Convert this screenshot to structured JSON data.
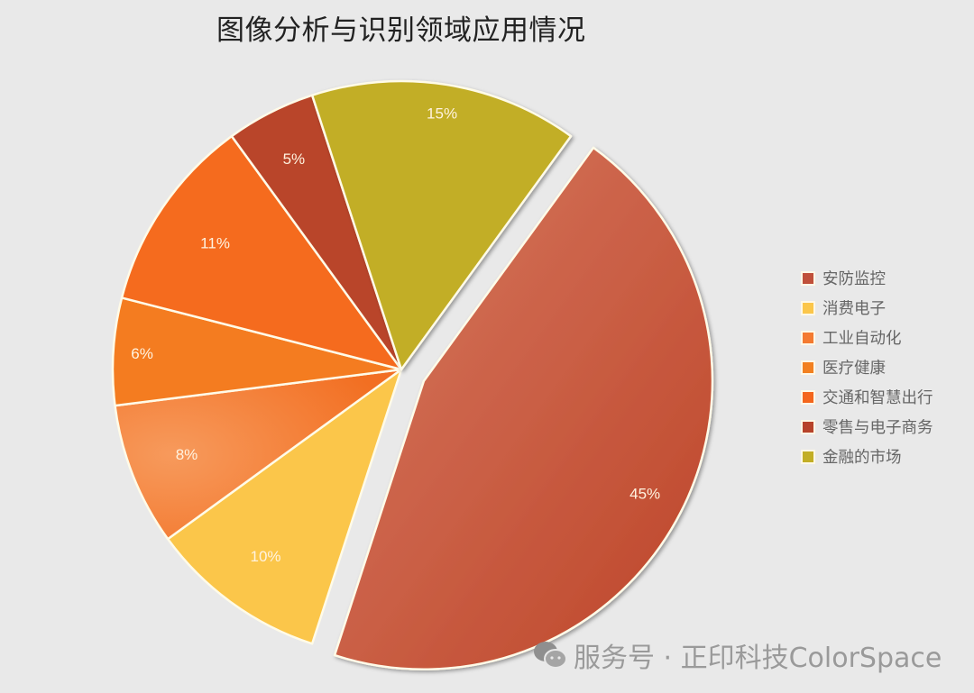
{
  "title": "图像分析与识别领域应用情况",
  "legend": [
    {
      "label": "安防监控",
      "color": "#c0503a"
    },
    {
      "label": "消费电子",
      "color": "#fbc64a"
    },
    {
      "label": "工业自动化",
      "color": "#f47a30"
    },
    {
      "label": "医疗健康",
      "color": "#f28020"
    },
    {
      "label": "交通和智慧出行",
      "color": "#f4661c"
    },
    {
      "label": "零售与电子商务",
      "color": "#b7432a"
    },
    {
      "label": "金融的市场",
      "color": "#c2ae25"
    }
  ],
  "watermark": "服务号 · 正印科技ColorSpace",
  "chart_data": {
    "type": "pie",
    "title": "图像分析与识别领域应用情况",
    "categories": [
      "安防监控",
      "消费电子",
      "工业自动化",
      "医疗健康",
      "交通和智慧出行",
      "零售与电子商务",
      "金融的市场"
    ],
    "values": [
      45,
      10,
      8,
      6,
      11,
      5,
      15
    ],
    "labels": [
      "45%",
      "10%",
      "8%",
      "6%",
      "11%",
      "5%",
      "15%"
    ],
    "colors": [
      "#c8573f",
      "#fbc64a",
      "#f57d34",
      "#f47c20",
      "#f56b1e",
      "#b9452a",
      "#c2ae25"
    ],
    "exploded": [
      "安防监控"
    ],
    "legend_position": "right"
  }
}
